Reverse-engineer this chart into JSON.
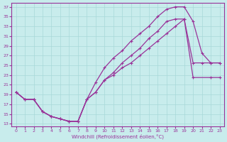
{
  "xlabel": "Windchill (Refroidissement éolien,°C)",
  "bg_color": "#c8ecec",
  "grid_color": "#a8d8d8",
  "line_color": "#993399",
  "xlim_min": -0.5,
  "xlim_max": 23.5,
  "ylim_min": 12.5,
  "ylim_max": 37.8,
  "xticks": [
    0,
    1,
    2,
    3,
    4,
    5,
    6,
    7,
    8,
    9,
    10,
    11,
    12,
    13,
    14,
    15,
    16,
    17,
    18,
    19,
    20,
    21,
    22,
    23
  ],
  "yticks": [
    13,
    15,
    17,
    19,
    21,
    23,
    25,
    27,
    29,
    31,
    33,
    35,
    37
  ],
  "line1_x": [
    0,
    1,
    2,
    3,
    4,
    5,
    6,
    7,
    8,
    9,
    10,
    11,
    12,
    13,
    14,
    15,
    16,
    17,
    18,
    19,
    20,
    21,
    22,
    23
  ],
  "line1_y": [
    19.5,
    18.0,
    18.0,
    15.5,
    14.5,
    14.0,
    13.5,
    13.5,
    18.0,
    21.5,
    24.5,
    26.5,
    28.0,
    30.0,
    31.5,
    33.0,
    35.0,
    36.5,
    37.0,
    37.0,
    34.0,
    27.5,
    25.5,
    25.5
  ],
  "line2_x": [
    0,
    1,
    2,
    3,
    4,
    5,
    6,
    7,
    8,
    9,
    10,
    11,
    12,
    13,
    14,
    15,
    16,
    17,
    18,
    19,
    20,
    22,
    23
  ],
  "line2_y": [
    19.5,
    18.0,
    18.0,
    15.5,
    14.5,
    14.0,
    13.5,
    13.5,
    18.0,
    19.5,
    22.0,
    23.5,
    25.5,
    27.0,
    28.5,
    30.5,
    32.0,
    34.0,
    34.5,
    34.5,
    22.5,
    22.5,
    22.5
  ],
  "line3_x": [
    0,
    1,
    2,
    3,
    4,
    5,
    6,
    7,
    8,
    9,
    10,
    11,
    12,
    13,
    14,
    15,
    16,
    17,
    18,
    19,
    20,
    21,
    22,
    23
  ],
  "line3_y": [
    19.5,
    18.0,
    18.0,
    15.5,
    14.5,
    14.0,
    13.5,
    13.5,
    18.0,
    19.5,
    22.0,
    23.0,
    24.5,
    25.5,
    27.0,
    28.5,
    30.0,
    31.5,
    33.0,
    34.5,
    25.5,
    25.5,
    25.5,
    25.5
  ],
  "marker": "+",
  "markersize": 3.5,
  "linewidth": 0.9
}
